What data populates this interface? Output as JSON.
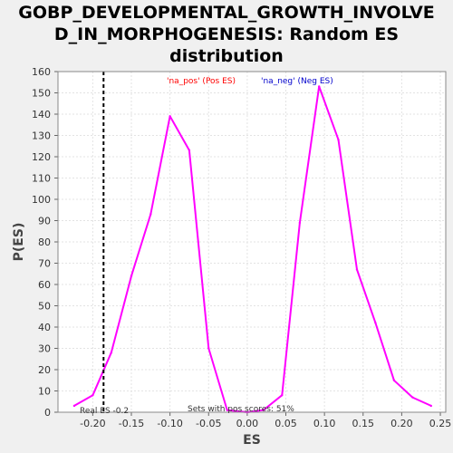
{
  "chart_data": {
    "type": "line",
    "title_lines": [
      "GOBP_DEVELOPMENTAL_GROWTH_INVOLVE",
      "D_IN_MORPHOGENESIS: Random ES",
      "distribution"
    ],
    "xlabel": "ES",
    "ylabel": "P(ES)",
    "xlim": [
      -0.245,
      0.257
    ],
    "ylim": [
      0,
      160
    ],
    "x_ticks": [
      -0.2,
      -0.15,
      -0.1,
      -0.05,
      0.0,
      0.05,
      0.1,
      0.15,
      0.2,
      0.25
    ],
    "x_tick_labels": [
      "-0.20",
      "-0.15",
      "-0.10",
      "-0.05",
      "0.00",
      "0.05",
      "0.10",
      "0.15",
      "0.20",
      "0.25"
    ],
    "y_ticks": [
      0,
      10,
      20,
      30,
      40,
      50,
      60,
      70,
      80,
      90,
      100,
      110,
      120,
      130,
      140,
      150,
      160
    ],
    "y_tick_labels": [
      "0",
      "10",
      "20",
      "30",
      "40",
      "50",
      "60",
      "70",
      "80",
      "90",
      "100",
      "110",
      "120",
      "130",
      "140",
      "150",
      "160"
    ],
    "grid": true,
    "series": [
      {
        "color": "#ff00ff",
        "x": [
          -0.224,
          -0.2,
          -0.176,
          -0.15,
          -0.125,
          -0.1,
          -0.075,
          -0.05,
          -0.026,
          0.0,
          0.021,
          0.045,
          0.068,
          0.093,
          0.118,
          0.142,
          0.166,
          0.19,
          0.214,
          0.238
        ],
        "y": [
          3,
          8,
          28,
          64,
          93,
          139,
          123,
          30,
          1,
          0,
          1,
          8,
          89,
          153,
          128,
          67,
          42,
          15,
          7,
          3
        ]
      }
    ],
    "real_es": {
      "x": -0.186,
      "label": "Real ES -0.2",
      "color": "#000000"
    },
    "legend": [
      {
        "label": "'na_pos' (Pos ES)",
        "color": "#ff0000"
      },
      {
        "label": "'na_neg' (Neg ES)",
        "color": "#0000cc"
      }
    ],
    "annotation": "Sets with pos scores: 51%",
    "colors": {
      "background": "#f0f0f0",
      "plot_background": "#ffffff",
      "grid": "#e3e3e3"
    }
  }
}
